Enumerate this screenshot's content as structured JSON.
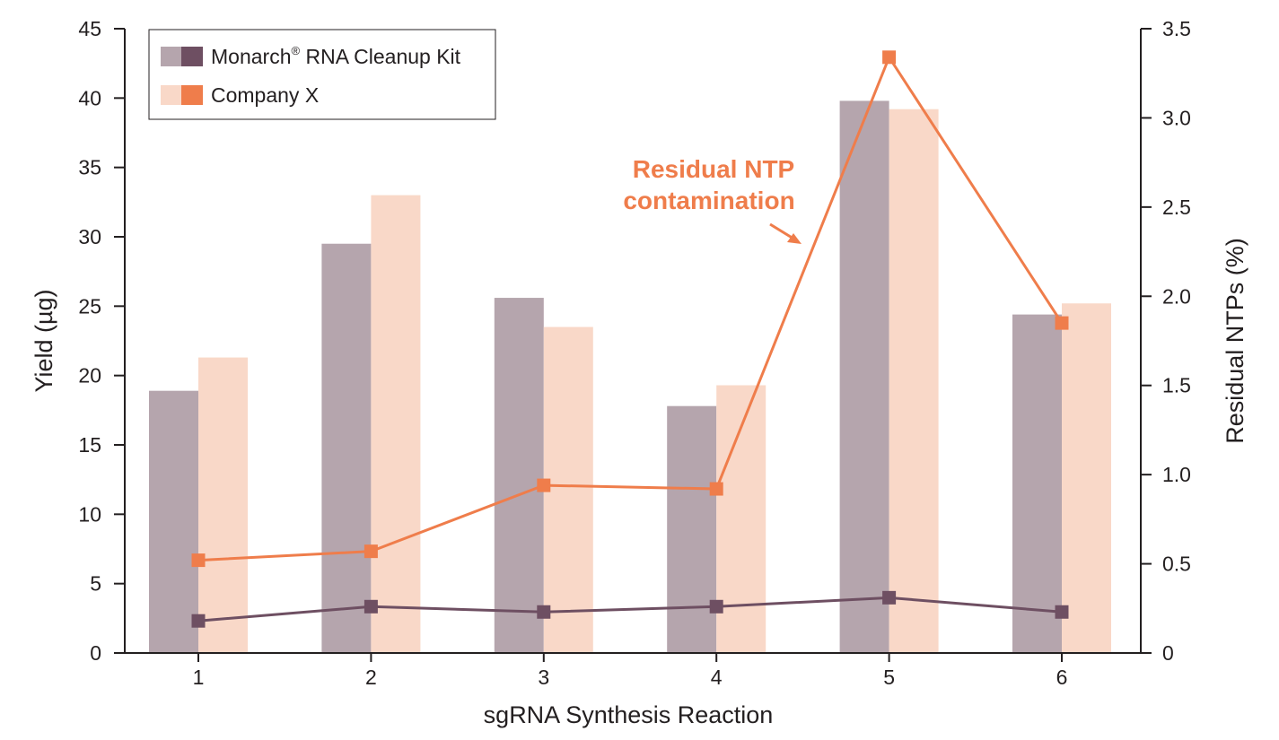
{
  "chart_data": {
    "type": "bar",
    "categories": [
      "1",
      "2",
      "3",
      "4",
      "5",
      "6"
    ],
    "xlabel": "sgRNA Synthesis Reaction",
    "ylabel": "Yield (µg)",
    "ylabel_right": "Residual NTPs (%)",
    "ylim": [
      0,
      45
    ],
    "yticks": [
      "0",
      "5",
      "10",
      "15",
      "20",
      "25",
      "30",
      "35",
      "40",
      "45"
    ],
    "ylim_right": [
      0,
      3.5
    ],
    "yticks_right": [
      "0",
      "0.5",
      "1.0",
      "1.5",
      "2.0",
      "2.5",
      "3.0",
      "3.5"
    ],
    "series": [
      {
        "name": "Monarch",
        "name_suffix": " RNA Cleanup Kit",
        "superscript": "®",
        "bar_values": [
          18.9,
          29.5,
          25.6,
          17.8,
          39.8,
          24.4
        ],
        "line_values": [
          0.18,
          0.26,
          0.23,
          0.26,
          0.31,
          0.23
        ],
        "bar_color": "#b5a5ad",
        "line_color": "#6e4f62"
      },
      {
        "name": "Company X",
        "bar_values": [
          21.3,
          33.0,
          23.5,
          19.3,
          39.2,
          25.2
        ],
        "line_values": [
          0.52,
          0.57,
          0.94,
          0.92,
          3.34,
          1.85
        ],
        "bar_color": "#f9d8c8",
        "line_color": "#ef7d4b"
      }
    ],
    "annotation": {
      "lines": [
        "Residual NTP",
        "contamination"
      ],
      "color": "#ef7d4b"
    },
    "legend_position": "top-left",
    "grid": false
  }
}
